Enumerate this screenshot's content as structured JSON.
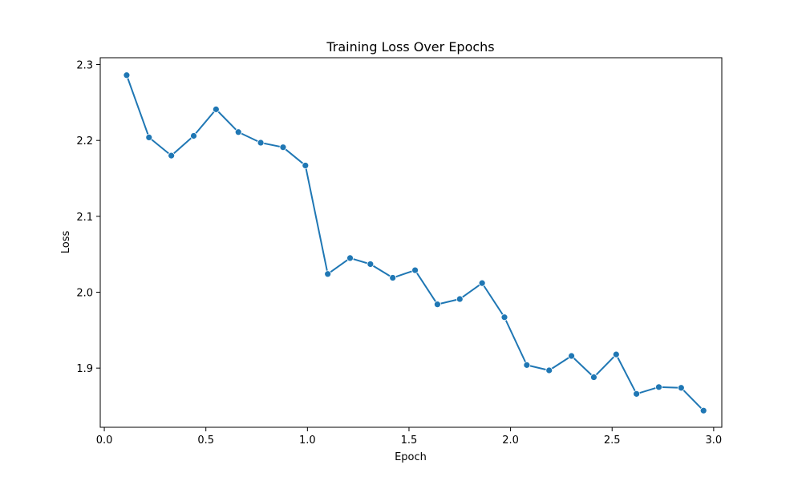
{
  "chart_data": {
    "type": "line",
    "title": "Training Loss Over Epochs",
    "xlabel": "Epoch",
    "ylabel": "Loss",
    "xlim": [
      -0.02,
      3.04
    ],
    "ylim": [
      1.822,
      2.309
    ],
    "xticks": [
      0.0,
      0.5,
      1.0,
      1.5,
      2.0,
      2.5,
      3.0
    ],
    "xtick_labels": [
      "0.0",
      "0.5",
      "1.0",
      "1.5",
      "2.0",
      "2.5",
      "3.0"
    ],
    "yticks": [
      1.9,
      2.0,
      2.1,
      2.2,
      2.3
    ],
    "ytick_labels": [
      "1.9",
      "2.0",
      "2.1",
      "2.2",
      "2.3"
    ],
    "grid": false,
    "legend": "none",
    "series": [
      {
        "color": "#1f77b4",
        "marker": "circle",
        "x": [
          0.11,
          0.22,
          0.33,
          0.44,
          0.55,
          0.66,
          0.77,
          0.88,
          0.99,
          1.1,
          1.21,
          1.31,
          1.42,
          1.53,
          1.64,
          1.75,
          1.86,
          1.97,
          2.08,
          2.19,
          2.3,
          2.41,
          2.52,
          2.62,
          2.73,
          2.84,
          2.95
        ],
        "y": [
          2.286,
          2.204,
          2.18,
          2.206,
          2.241,
          2.211,
          2.197,
          2.191,
          2.167,
          2.024,
          2.045,
          2.037,
          2.019,
          2.029,
          1.984,
          1.991,
          2.012,
          1.967,
          1.904,
          1.897,
          1.916,
          1.888,
          1.918,
          1.866,
          1.875,
          1.874,
          1.844
        ]
      }
    ]
  }
}
